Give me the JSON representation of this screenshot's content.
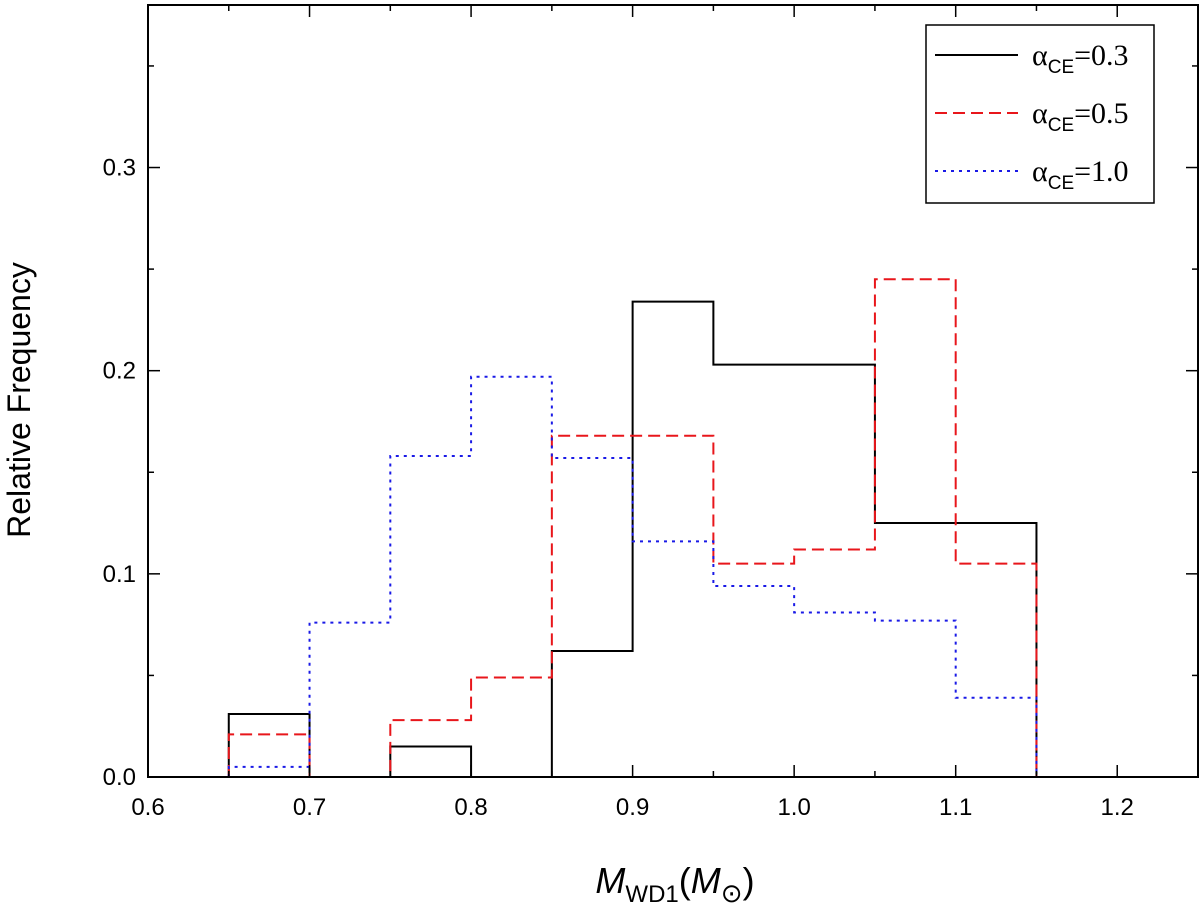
{
  "chart_data": {
    "type": "histogram-step",
    "xlabel": {
      "main": "M",
      "sub": "WD1",
      "paren_open": "(",
      "unit": "M",
      "paren_close": ")"
    },
    "ylabel": "Relative Frequency",
    "xlim": [
      0.6,
      1.25
    ],
    "ylim": [
      0.0,
      0.38
    ],
    "x_ticks": [
      0.6,
      0.7,
      0.8,
      0.9,
      1.0,
      1.1,
      1.2
    ],
    "x_tick_labels": [
      "0.6",
      "0.7",
      "0.8",
      "0.9",
      "1.0",
      "1.1",
      "1.2"
    ],
    "x_minor_ticks": [
      0.65,
      0.75,
      0.85,
      0.95,
      1.05,
      1.15,
      1.25
    ],
    "y_ticks": [
      0.0,
      0.1,
      0.2,
      0.3
    ],
    "y_tick_labels": [
      "0.0",
      "0.1",
      "0.2",
      "0.3"
    ],
    "y_minor_ticks": [
      0.05,
      0.15,
      0.25,
      0.35
    ],
    "bin_edges": [
      0.65,
      0.7,
      0.75,
      0.8,
      0.85,
      0.9,
      0.95,
      1.0,
      1.05,
      1.1,
      1.15
    ],
    "legend_position": "top-right",
    "series": [
      {
        "name": "α_CE=0.3",
        "symbol": "α",
        "subscript": "CE",
        "value_text": "=0.3",
        "color": "#000000",
        "dash": "solid",
        "values": [
          0.031,
          0.0,
          0.015,
          0.0,
          0.062,
          0.234,
          0.203,
          0.203,
          0.125,
          0.125
        ]
      },
      {
        "name": "α_CE=0.5",
        "symbol": "α",
        "subscript": "CE",
        "value_text": "=0.5",
        "color": "#e8161b",
        "dash": "dashed",
        "values": [
          0.021,
          0.0,
          0.028,
          0.049,
          0.168,
          0.168,
          0.105,
          0.112,
          0.245,
          0.105
        ]
      },
      {
        "name": "α_CE=1.0",
        "symbol": "α",
        "subscript": "CE",
        "value_text": "=1.0",
        "color": "#1a1ae6",
        "dash": "dotted",
        "values": [
          0.005,
          0.076,
          0.158,
          0.197,
          0.157,
          0.116,
          0.094,
          0.081,
          0.077,
          0.039
        ]
      }
    ]
  }
}
